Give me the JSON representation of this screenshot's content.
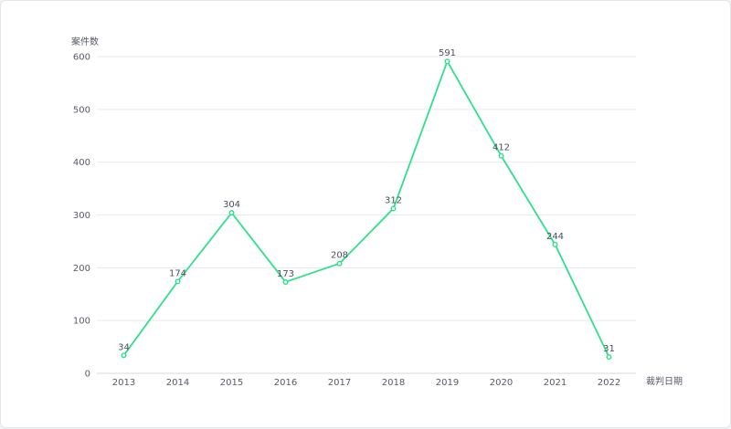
{
  "chart_data": {
    "type": "line",
    "ylabel": "案件数",
    "xlabel": "裁判日期",
    "categories": [
      "2013",
      "2014",
      "2015",
      "2016",
      "2017",
      "2018",
      "2019",
      "2020",
      "2021",
      "2022"
    ],
    "series": [
      {
        "values": [
          34,
          174,
          304,
          173,
          208,
          312,
          591,
          412,
          244,
          31
        ]
      }
    ],
    "ylim": [
      0,
      600
    ],
    "yticks": [
      0,
      100,
      200,
      300,
      400,
      500,
      600
    ],
    "grid": true,
    "data_labels": true,
    "colors": {
      "line": "#2ee08c",
      "grid": "#e8eaee",
      "axis": "#d7d9de",
      "text": "#555a66"
    }
  }
}
